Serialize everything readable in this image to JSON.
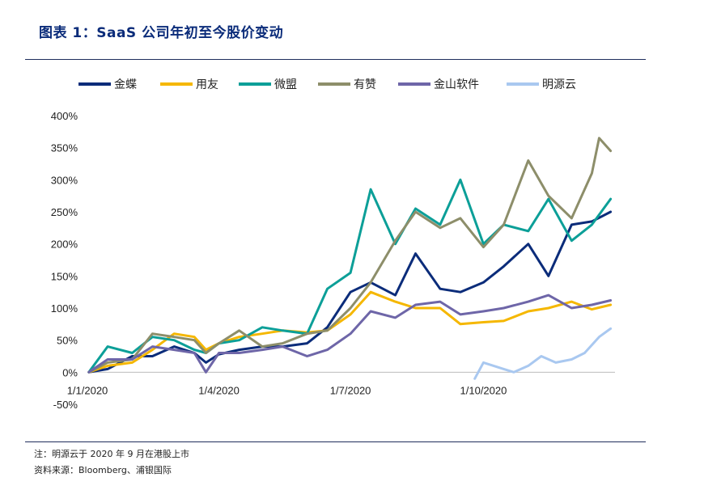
{
  "header": {
    "title": "图表 1：SaaS 公司年初至今股价变动"
  },
  "footer": {
    "note": "注：明源云于 2020 年 9 月在港股上市",
    "source": "资料来源：Bloomberg、浦银国际"
  },
  "chart_data": {
    "type": "line",
    "x_axis": {
      "ticks": [
        "1/1/2020",
        "1/4/2020",
        "1/7/2020",
        "1/10/2020"
      ],
      "tick_dates": [
        "2020-01-01",
        "2020-04-01",
        "2020-07-01",
        "2020-10-01"
      ],
      "range": [
        "2020-01-01",
        "2020-12-31"
      ]
    },
    "y_axis": {
      "ticks": [
        "400%",
        "350%",
        "300%",
        "250%",
        "200%",
        "150%",
        "100%",
        "50%",
        "0%",
        "-50%"
      ],
      "tick_values": [
        400,
        350,
        300,
        250,
        200,
        150,
        100,
        50,
        0,
        -50
      ],
      "range": [
        -50,
        400
      ],
      "unit": "%"
    },
    "grid": false,
    "legend_position": "top",
    "series": [
      {
        "name": "金蝶",
        "color": "#0b2c7a",
        "x": [
          "2020-01-02",
          "2020-01-15",
          "2020-02-01",
          "2020-02-15",
          "2020-03-01",
          "2020-03-15",
          "2020-03-23",
          "2020-04-01",
          "2020-04-15",
          "2020-05-01",
          "2020-05-15",
          "2020-06-01",
          "2020-06-15",
          "2020-07-01",
          "2020-07-15",
          "2020-08-01",
          "2020-08-15",
          "2020-09-01",
          "2020-09-15",
          "2020-10-01",
          "2020-10-15",
          "2020-11-01",
          "2020-11-15",
          "2020-12-01",
          "2020-12-15",
          "2020-12-28"
        ],
        "y": [
          0,
          5,
          25,
          25,
          40,
          30,
          15,
          28,
          35,
          40,
          40,
          45,
          70,
          125,
          140,
          120,
          185,
          130,
          125,
          140,
          165,
          200,
          150,
          230,
          235,
          250
        ]
      },
      {
        "name": "用友",
        "color": "#f5b700",
        "x": [
          "2020-01-02",
          "2020-01-15",
          "2020-02-01",
          "2020-02-15",
          "2020-03-01",
          "2020-03-15",
          "2020-03-23",
          "2020-04-01",
          "2020-04-15",
          "2020-05-01",
          "2020-05-15",
          "2020-06-01",
          "2020-06-15",
          "2020-07-01",
          "2020-07-15",
          "2020-08-01",
          "2020-08-15",
          "2020-09-01",
          "2020-09-15",
          "2020-10-01",
          "2020-10-15",
          "2020-11-01",
          "2020-11-15",
          "2020-12-01",
          "2020-12-15",
          "2020-12-28"
        ],
        "y": [
          0,
          10,
          15,
          35,
          60,
          55,
          35,
          45,
          55,
          60,
          65,
          62,
          65,
          90,
          125,
          110,
          100,
          100,
          75,
          78,
          80,
          95,
          100,
          110,
          98,
          105
        ]
      },
      {
        "name": "微盟",
        "color": "#0c9f98",
        "x": [
          "2020-01-02",
          "2020-01-15",
          "2020-02-01",
          "2020-02-15",
          "2020-03-01",
          "2020-03-15",
          "2020-03-23",
          "2020-04-01",
          "2020-04-15",
          "2020-05-01",
          "2020-05-15",
          "2020-06-01",
          "2020-06-15",
          "2020-07-01",
          "2020-07-15",
          "2020-08-01",
          "2020-08-15",
          "2020-09-01",
          "2020-09-15",
          "2020-10-01",
          "2020-10-15",
          "2020-11-01",
          "2020-11-15",
          "2020-12-01",
          "2020-12-15",
          "2020-12-28"
        ],
        "y": [
          0,
          40,
          30,
          55,
          50,
          35,
          30,
          45,
          50,
          70,
          65,
          60,
          130,
          155,
          285,
          200,
          255,
          230,
          300,
          200,
          230,
          220,
          270,
          205,
          230,
          270
        ]
      },
      {
        "name": "有赞",
        "color": "#8d8e6a",
        "x": [
          "2020-01-02",
          "2020-01-15",
          "2020-02-01",
          "2020-02-15",
          "2020-03-01",
          "2020-03-15",
          "2020-03-23",
          "2020-04-01",
          "2020-04-15",
          "2020-05-01",
          "2020-05-15",
          "2020-06-01",
          "2020-06-15",
          "2020-07-01",
          "2020-07-15",
          "2020-08-01",
          "2020-08-15",
          "2020-09-01",
          "2020-09-15",
          "2020-10-01",
          "2020-10-15",
          "2020-11-01",
          "2020-11-15",
          "2020-12-01",
          "2020-12-15",
          "2020-12-20",
          "2020-12-28"
        ],
        "y": [
          0,
          15,
          20,
          60,
          55,
          50,
          30,
          45,
          65,
          40,
          45,
          60,
          65,
          100,
          140,
          205,
          250,
          225,
          240,
          195,
          230,
          330,
          275,
          240,
          310,
          365,
          345
        ]
      },
      {
        "name": "金山软件",
        "color": "#6e66a8",
        "x": [
          "2020-01-02",
          "2020-01-15",
          "2020-02-01",
          "2020-02-15",
          "2020-03-01",
          "2020-03-15",
          "2020-03-23",
          "2020-04-01",
          "2020-04-15",
          "2020-05-01",
          "2020-05-15",
          "2020-06-01",
          "2020-06-15",
          "2020-07-01",
          "2020-07-15",
          "2020-08-01",
          "2020-08-15",
          "2020-09-01",
          "2020-09-15",
          "2020-10-01",
          "2020-10-15",
          "2020-11-01",
          "2020-11-15",
          "2020-12-01",
          "2020-12-15",
          "2020-12-28"
        ],
        "y": [
          0,
          20,
          20,
          40,
          35,
          30,
          0,
          30,
          30,
          35,
          40,
          25,
          35,
          60,
          95,
          85,
          105,
          110,
          90,
          95,
          100,
          110,
          120,
          100,
          105,
          112
        ]
      },
      {
        "name": "明源云",
        "color": "#a9c8f0",
        "x": [
          "2020-09-25",
          "2020-10-01",
          "2020-10-08",
          "2020-10-15",
          "2020-10-22",
          "2020-11-01",
          "2020-11-10",
          "2020-11-20",
          "2020-12-01",
          "2020-12-10",
          "2020-12-20",
          "2020-12-28"
        ],
        "y": [
          -10,
          15,
          10,
          5,
          0,
          10,
          25,
          15,
          20,
          30,
          55,
          68
        ]
      }
    ]
  }
}
